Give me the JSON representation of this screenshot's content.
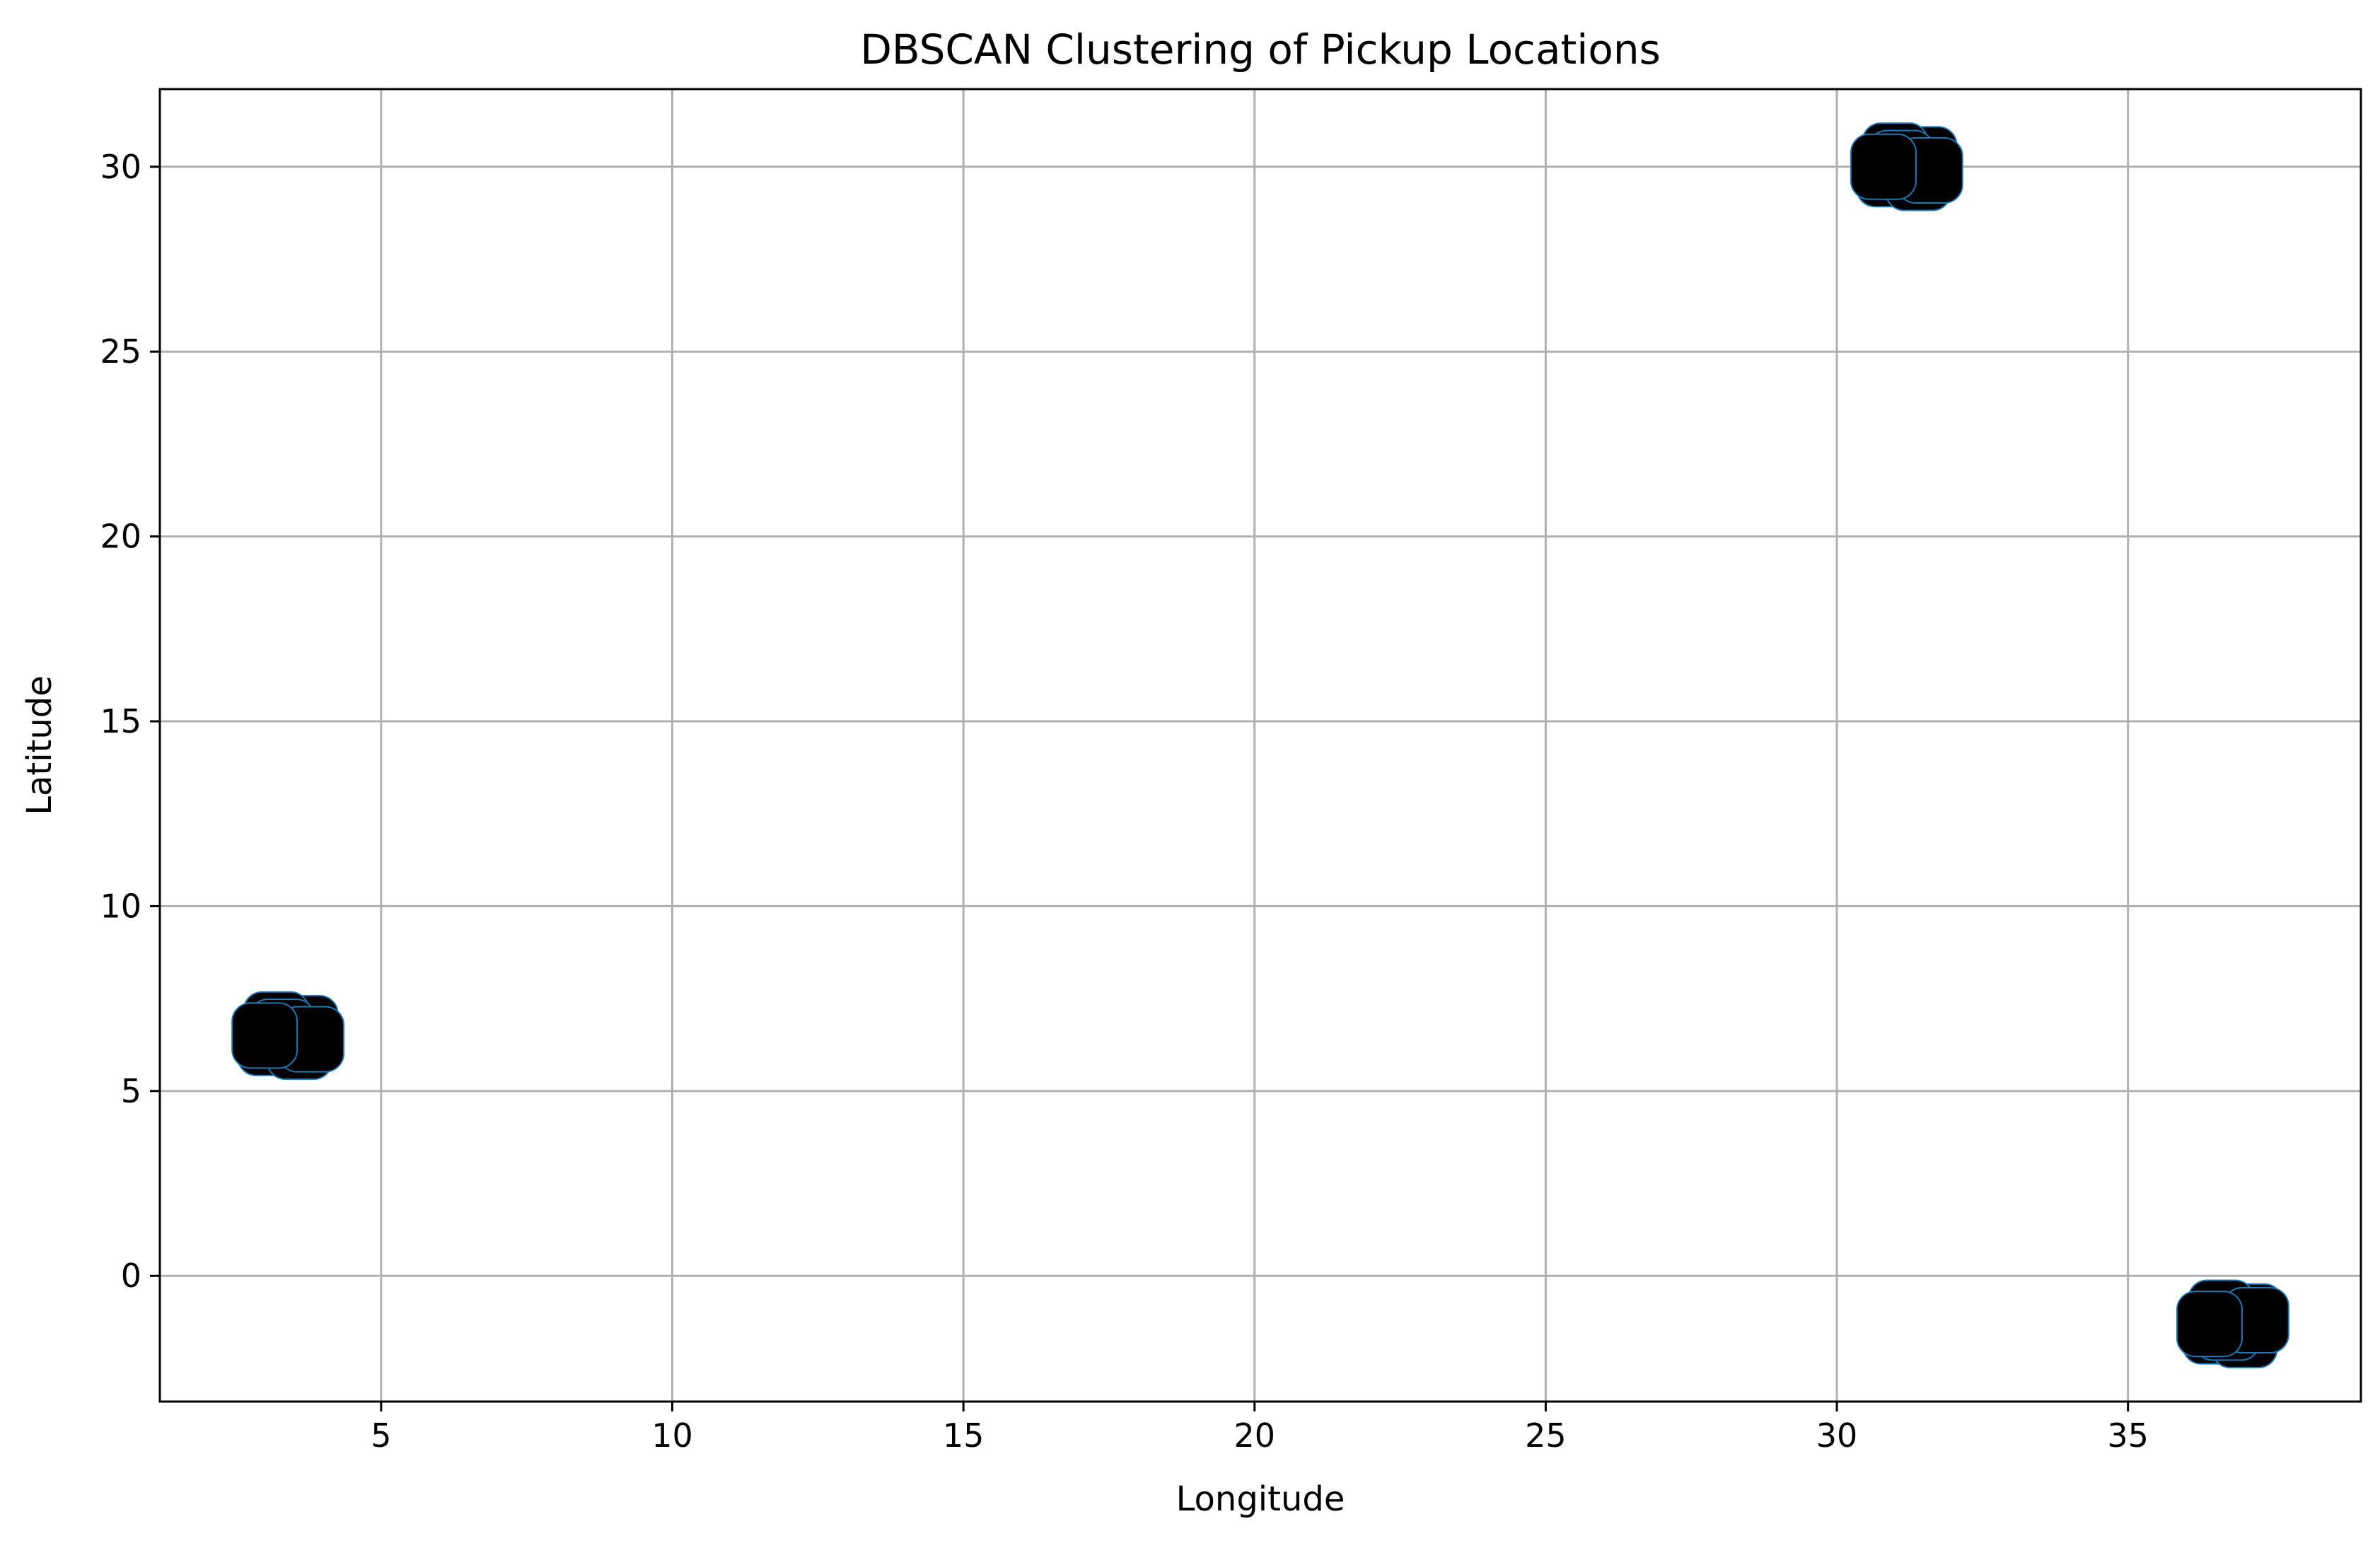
{
  "chart_data": {
    "type": "scatter",
    "title": "DBSCAN Clustering of Pickup Locations",
    "xlabel": "Longitude",
    "ylabel": "Latitude",
    "xlim": [
      1.2,
      39.0
    ],
    "ylim": [
      -3.4,
      32.1
    ],
    "xticks": [
      5,
      10,
      15,
      20,
      25,
      30,
      35
    ],
    "yticks": [
      0,
      5,
      10,
      15,
      20,
      25,
      30
    ],
    "grid": true,
    "legend": "none",
    "colors": {
      "point_fill": "#000000",
      "point_edge": "#1f77b4",
      "grid": "#b0b0b0",
      "axes": "#000000"
    },
    "series": [
      {
        "points": [
          {
            "x": 3.1,
            "y": 6.3
          },
          {
            "x": 3.4,
            "y": 6.5
          },
          {
            "x": 3.7,
            "y": 6.7
          },
          {
            "x": 3.2,
            "y": 6.8
          },
          {
            "x": 3.6,
            "y": 6.2
          },
          {
            "x": 3.3,
            "y": 6.6
          },
          {
            "x": 3.8,
            "y": 6.4
          },
          {
            "x": 3.0,
            "y": 6.5
          }
        ]
      },
      {
        "points": [
          {
            "x": 30.9,
            "y": 29.8
          },
          {
            "x": 31.2,
            "y": 30.0
          },
          {
            "x": 31.5,
            "y": 30.2
          },
          {
            "x": 31.0,
            "y": 30.3
          },
          {
            "x": 31.4,
            "y": 29.7
          },
          {
            "x": 31.1,
            "y": 30.1
          },
          {
            "x": 31.6,
            "y": 29.9
          },
          {
            "x": 30.8,
            "y": 30.0
          }
        ]
      },
      {
        "points": [
          {
            "x": 36.5,
            "y": -1.5
          },
          {
            "x": 36.8,
            "y": -1.3
          },
          {
            "x": 37.1,
            "y": -1.1
          },
          {
            "x": 36.6,
            "y": -1.0
          },
          {
            "x": 37.0,
            "y": -1.6
          },
          {
            "x": 36.7,
            "y": -1.4
          },
          {
            "x": 37.2,
            "y": -1.2
          },
          {
            "x": 36.4,
            "y": -1.3
          }
        ]
      }
    ]
  }
}
